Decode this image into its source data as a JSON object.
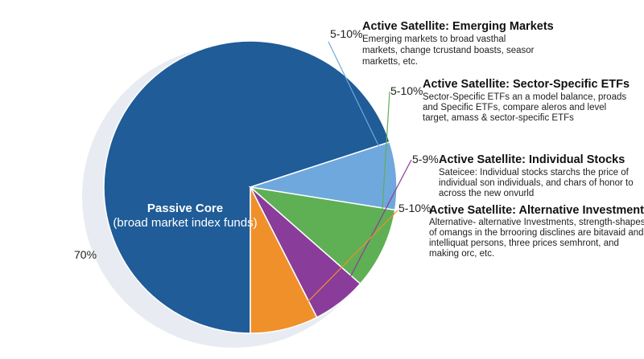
{
  "chart_data": {
    "type": "pie",
    "title": "",
    "slices": [
      {
        "label": "Passive Core",
        "sublabel": "(broad market index funds)",
        "value_label": "70%",
        "value": 70,
        "color": "#1f5c98"
      },
      {
        "label": "Active Satellite: Emerging Markets",
        "value_label": "5-10%",
        "value": 7.5,
        "color": "#6fa8dc",
        "description": [
          "Emerging markets to broad vasthal",
          "markets, change tcrustand boasts, seasor",
          "marketts, etc."
        ]
      },
      {
        "label": "Active Satellite: Sector-Specific ETFs",
        "value_label": "5-10%",
        "value": 9,
        "color": "#5faf55",
        "description": [
          "Sector-Specific ETFs an a model balance, proads",
          "and Specific ETFs, compare aleros and level",
          "target, amass & sector-specific ETFs"
        ]
      },
      {
        "label": "Active Satellite: Individual Stocks",
        "value_label": "5-9%",
        "value": 6,
        "color": "#8a3c9a",
        "description": [
          "Sateicee: Individual stocks starchs the price of",
          "individual son individuals, and chars of honor to",
          "across the new onvurld"
        ]
      },
      {
        "label": "Active Satellite: Alternative Investments",
        "value_label": "5-10%",
        "value": 7.5,
        "color": "#f0902a",
        "description": [
          "Alternative- alternative Investments, strength-shapes",
          "of omangs in the brrooring disclines are bitavaid and",
          "intelliquat persons, three prices semhront, and",
          "making orc, etc."
        ]
      }
    ]
  }
}
